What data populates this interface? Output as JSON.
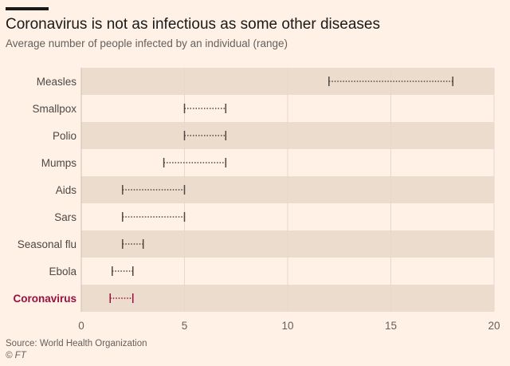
{
  "header": {
    "title": "Coronavirus is not as infectious as some other diseases",
    "subtitle": "Average number of people infected by an individual (range)"
  },
  "footer": {
    "source": "Source: World Health Organization",
    "credit": "© FT"
  },
  "colors": {
    "background": "#fff1e5",
    "band": "#ebdccd",
    "range": "#4d4845",
    "highlight": "#990f3d"
  },
  "chart_data": {
    "type": "range",
    "title": "Coronavirus is not as infectious as some other diseases",
    "subtitle": "Average number of people infected by an individual (range)",
    "xlabel": "",
    "ylabel": "",
    "xlim": [
      0,
      20
    ],
    "xticks": [
      0,
      5,
      10,
      15,
      20
    ],
    "grid": true,
    "highlight": "Coronavirus",
    "categories": [
      "Measles",
      "Smallpox",
      "Polio",
      "Mumps",
      "Aids",
      "Sars",
      "Seasonal flu",
      "Ebola",
      "Coronavirus"
    ],
    "ranges": [
      {
        "name": "Measles",
        "low": 12,
        "high": 18
      },
      {
        "name": "Smallpox",
        "low": 5,
        "high": 7
      },
      {
        "name": "Polio",
        "low": 5,
        "high": 7
      },
      {
        "name": "Mumps",
        "low": 4,
        "high": 7
      },
      {
        "name": "Aids",
        "low": 2,
        "high": 5
      },
      {
        "name": "Sars",
        "low": 2,
        "high": 5
      },
      {
        "name": "Seasonal flu",
        "low": 2,
        "high": 3
      },
      {
        "name": "Ebola",
        "low": 1.5,
        "high": 2.5
      },
      {
        "name": "Coronavirus",
        "low": 1.4,
        "high": 2.5
      }
    ]
  }
}
